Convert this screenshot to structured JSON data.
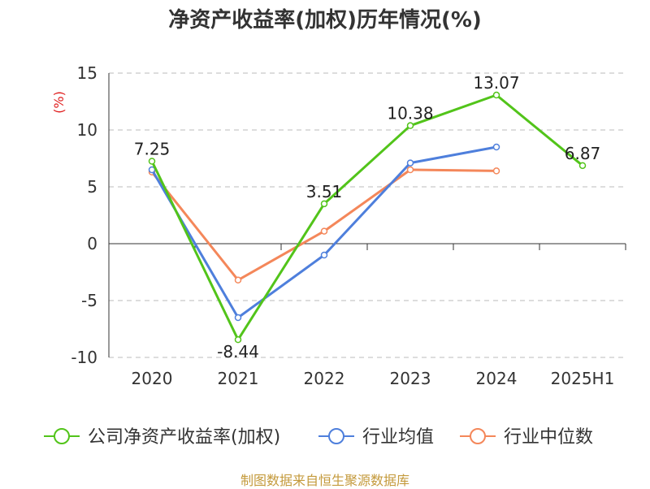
{
  "chart_data": {
    "type": "line",
    "title": "净资产收益率(加权)历年情况(%)",
    "ylabel": "(%)",
    "xlabel": "",
    "categories": [
      "2020",
      "2021",
      "2022",
      "2023",
      "2024",
      "2025H1"
    ],
    "ylim": [
      -10,
      15
    ],
    "yticks": [
      -10,
      -5,
      0,
      5,
      10,
      15
    ],
    "grid": true,
    "legend_position": "bottom",
    "series": [
      {
        "name": "公司净资产收益率(加权)",
        "color": "#52c41a",
        "values": [
          7.25,
          -8.44,
          3.51,
          10.38,
          13.07,
          6.87
        ],
        "labels": [
          "7.25",
          "-8.44",
          "3.51",
          "10.38",
          "13.07",
          "6.87"
        ]
      },
      {
        "name": "行业均值",
        "color": "#4e7fdc",
        "values": [
          6.5,
          -6.5,
          -1.0,
          7.1,
          8.5,
          null
        ]
      },
      {
        "name": "行业中位数",
        "color": "#f4875a",
        "values": [
          6.3,
          -3.2,
          1.1,
          6.5,
          6.4,
          null
        ]
      }
    ]
  },
  "source": "制图数据来自恒生聚源数据库"
}
